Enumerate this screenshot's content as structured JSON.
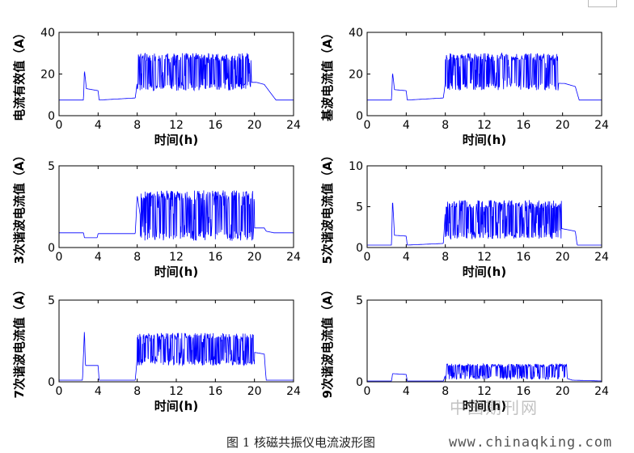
{
  "caption": "图 1  核磁共振仪电流波形图",
  "watermark_cn": "中国期刊网",
  "watermark_url": "www.chinaqking.com",
  "line_color": "#0000ff",
  "chart_data": [
    {
      "type": "line",
      "ylabel": "电流有效值（A）",
      "xlabel": "时间(h)",
      "xlim": [
        0,
        24
      ],
      "xticks": [
        0,
        4,
        8,
        12,
        16,
        20,
        24
      ],
      "ylim": [
        0,
        40
      ],
      "yticks": [
        0,
        20,
        40
      ],
      "x": [
        0,
        2.5,
        2.6,
        2.8,
        4.0,
        4.1,
        7.8,
        8.0,
        20.2,
        21.0,
        22.2,
        24
      ],
      "y": [
        7.5,
        7.5,
        22,
        13,
        12,
        7.5,
        8.5,
        16,
        16,
        15,
        7.5,
        7.5
      ],
      "noise": {
        "x_start": 8.0,
        "x_end": 19.7,
        "low": 12,
        "high": 30
      }
    },
    {
      "type": "line",
      "ylabel": "基波电流值（A）",
      "xlabel": "时间(h)",
      "xlim": [
        0,
        24
      ],
      "xticks": [
        0,
        4,
        8,
        12,
        16,
        20,
        24
      ],
      "ylim": [
        0,
        40
      ],
      "yticks": [
        0,
        20,
        40
      ],
      "x": [
        0,
        2.5,
        2.6,
        2.8,
        4.0,
        4.1,
        7.8,
        8.0,
        20.2,
        21.3,
        21.7,
        24
      ],
      "y": [
        7.5,
        7.5,
        21,
        12.5,
        12,
        7.5,
        8.5,
        16,
        15.5,
        14,
        7.5,
        7.5
      ],
      "noise": {
        "x_start": 8.0,
        "x_end": 19.6,
        "low": 12,
        "high": 30
      }
    },
    {
      "type": "line",
      "ylabel": "3次谐波电流值（A）",
      "xlabel": "时间(h)",
      "xlim": [
        0,
        24
      ],
      "xticks": [
        0,
        4,
        8,
        12,
        16,
        20,
        24
      ],
      "ylim": [
        0,
        5
      ],
      "yticks": [
        0,
        5
      ],
      "x": [
        0,
        2.5,
        2.6,
        3.9,
        4.0,
        7.8,
        8.0,
        8.3,
        20.0,
        21.0,
        21.2,
        22.0,
        24
      ],
      "y": [
        0.9,
        0.9,
        0.6,
        0.6,
        0.85,
        0.85,
        3.2,
        2.0,
        1.2,
        1.2,
        1.0,
        0.9,
        0.9
      ],
      "noise": {
        "x_start": 8.3,
        "x_end": 20.0,
        "low": 0.4,
        "high": 3.5
      }
    },
    {
      "type": "line",
      "ylabel": "5次谐波电流值（A）",
      "xlabel": "时间(h)",
      "xlim": [
        0,
        24
      ],
      "xticks": [
        0,
        4,
        8,
        12,
        16,
        20,
        24
      ],
      "ylim": [
        0,
        10
      ],
      "yticks": [
        0,
        5,
        10
      ],
      "x": [
        0,
        2.5,
        2.6,
        2.8,
        4.0,
        4.1,
        7.8,
        8.0,
        20.0,
        21.3,
        21.5,
        24
      ],
      "y": [
        0.3,
        0.3,
        6.0,
        1.5,
        1.4,
        0.3,
        0.5,
        4.5,
        2.3,
        2.0,
        0.3,
        0.3
      ],
      "noise": {
        "x_start": 8.0,
        "x_end": 19.9,
        "low": 1.0,
        "high": 5.8
      }
    },
    {
      "type": "line",
      "ylabel": "7次谐波电流值（A）",
      "xlabel": "时间(h)",
      "xlim": [
        0,
        24
      ],
      "xticks": [
        0,
        4,
        8,
        12,
        16,
        20,
        24
      ],
      "ylim": [
        0,
        5
      ],
      "yticks": [
        0,
        5
      ],
      "x": [
        0,
        2.4,
        2.6,
        2.7,
        4.0,
        4.1,
        7.8,
        8.0,
        20.0,
        21.0,
        21.2,
        24
      ],
      "y": [
        0.1,
        0.1,
        3.2,
        1.0,
        1.0,
        0.1,
        0.1,
        1.5,
        1.8,
        1.7,
        0.1,
        0.1
      ],
      "noise": {
        "x_start": 8.0,
        "x_end": 20.0,
        "low": 1.0,
        "high": 3.0
      }
    },
    {
      "type": "line",
      "ylabel": "9次谐波电流值（A）",
      "xlabel": "时间(h)",
      "xlim": [
        0,
        24
      ],
      "xticks": [
        0,
        4,
        8,
        12,
        16,
        20,
        24
      ],
      "ylim": [
        0,
        5
      ],
      "yticks": [
        0,
        5
      ],
      "x": [
        0,
        2.5,
        2.6,
        4.0,
        4.1,
        7.8,
        8.0,
        20.0,
        21.0,
        24
      ],
      "y": [
        0.05,
        0.05,
        0.5,
        0.45,
        0.05,
        0.05,
        0.4,
        0.3,
        0.1,
        0.05
      ],
      "noise": {
        "x_start": 8.0,
        "x_end": 20.5,
        "low": 0.15,
        "high": 1.1
      }
    }
  ]
}
